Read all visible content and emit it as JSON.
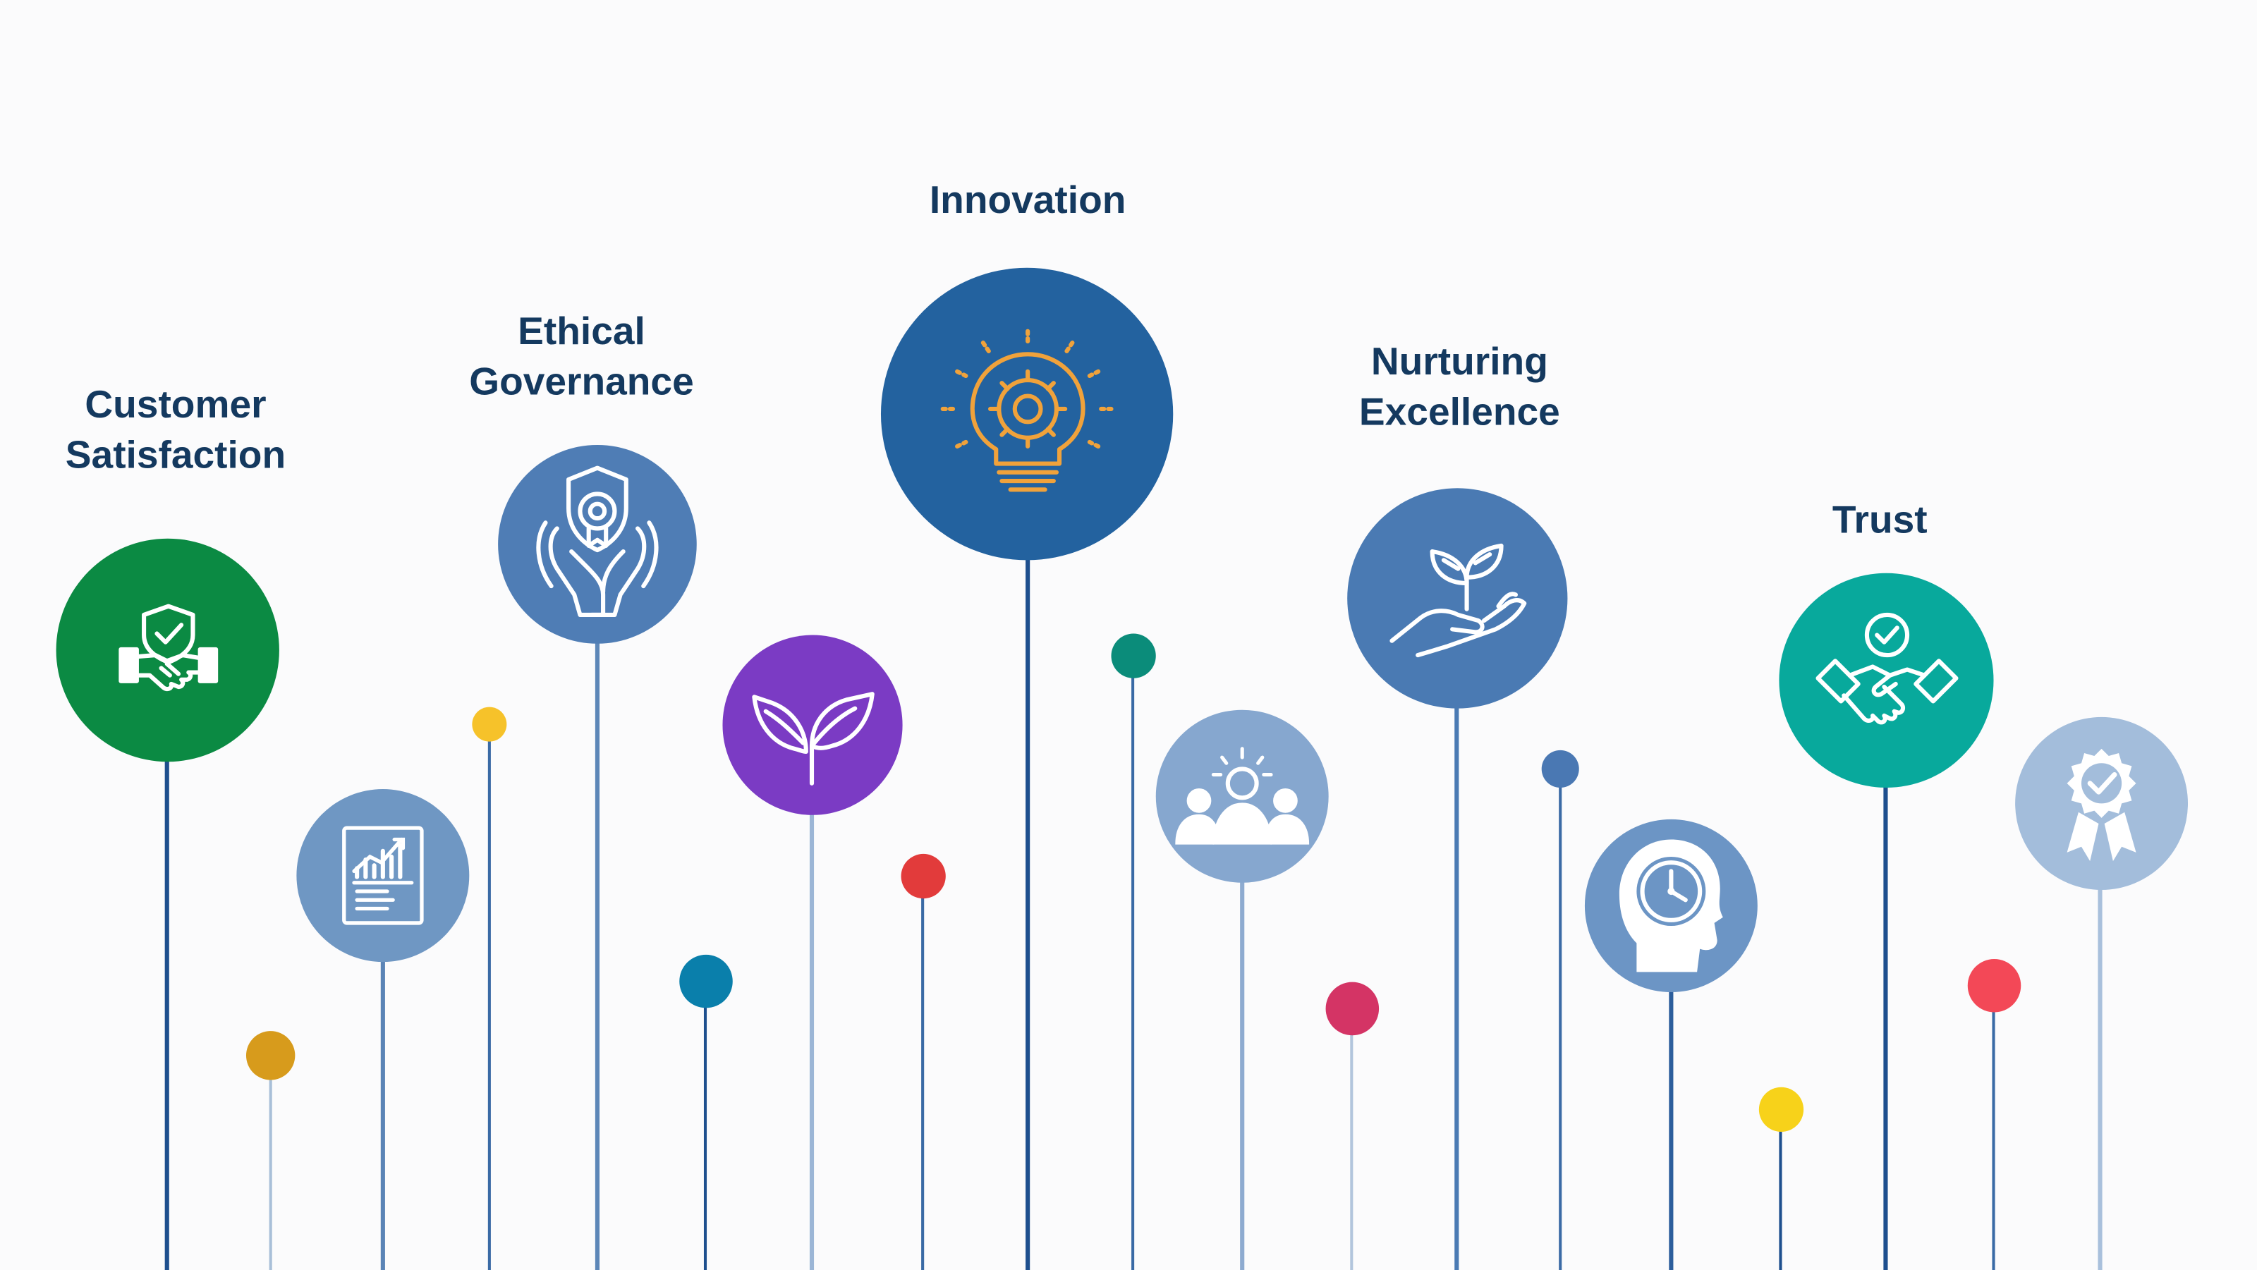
{
  "values": [
    {
      "id": "customer-satisfaction",
      "title_lines": [
        "Customer",
        "Satisfaction"
      ],
      "color": "#0b8a43",
      "icon": "shield-handshake-icon"
    },
    {
      "id": "ethical-governance",
      "title_lines": [
        "Ethical",
        "Governance"
      ],
      "color": "#4f7db5",
      "icon": "hands-badge-icon"
    },
    {
      "id": "innovation",
      "title_lines": [
        "Innovation"
      ],
      "color": "#23629f",
      "icon": "lightbulb-gear-icon"
    },
    {
      "id": "nurturing-excellence",
      "title_lines": [
        "Nurturing",
        "Excellence"
      ],
      "color": "#4a7ab3",
      "icon": "hand-sprout-icon"
    },
    {
      "id": "trust",
      "title_lines": [
        "Trust"
      ],
      "color": "#08a99c",
      "icon": "handshake-check-icon"
    }
  ],
  "unlabeled_nodes": [
    {
      "icon": "report-chart-icon",
      "color": "#6f97c3"
    },
    {
      "icon": "sprout-icon",
      "color": "#7b3bc4"
    },
    {
      "icon": "team-idea-icon",
      "color": "#86a7cf"
    },
    {
      "icon": "head-clock-icon",
      "color": "#6c95c5"
    },
    {
      "icon": "award-ribbon-icon",
      "color": "#a3bddb"
    }
  ],
  "accent_dots": [
    "#d79b1c",
    "#f6c22a",
    "#0a7fab",
    "#e23b3b",
    "#0b8c7a",
    "#d43465",
    "#4a78b3",
    "#f7d21a",
    "#f34857"
  ]
}
